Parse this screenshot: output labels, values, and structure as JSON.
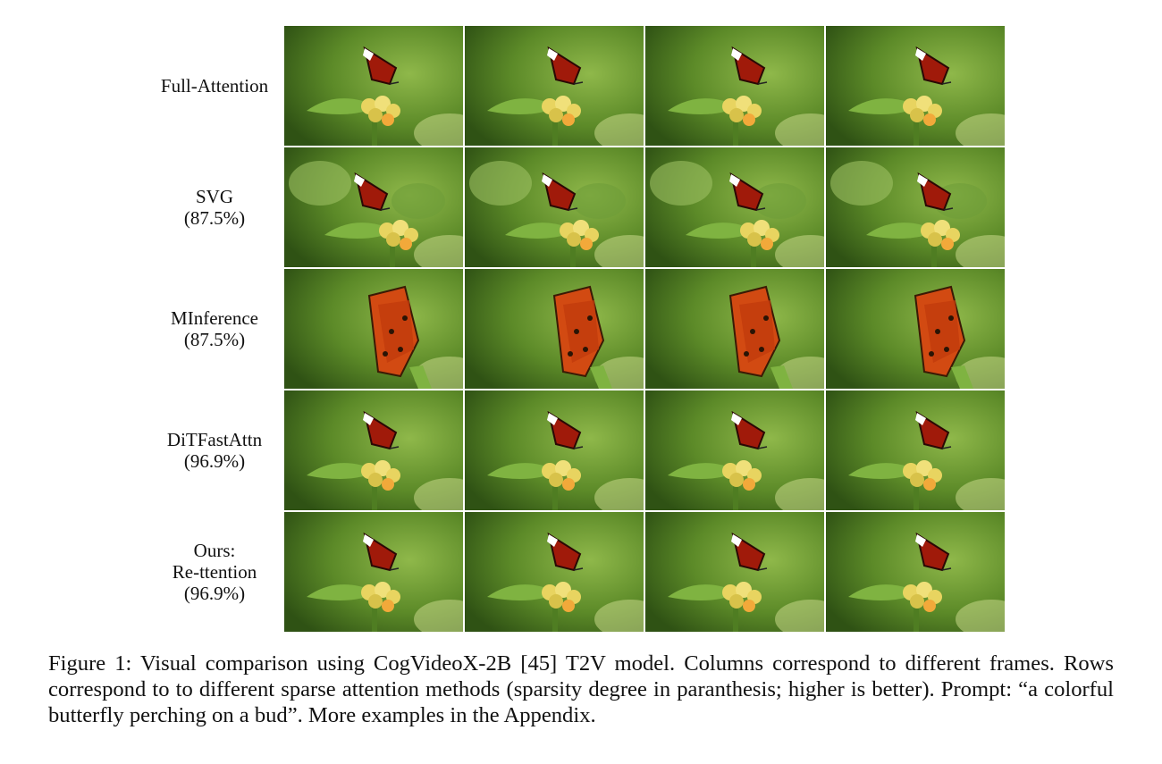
{
  "figure": {
    "columns": 4,
    "rows": [
      {
        "label_lines": [
          "Full-Attention"
        ],
        "variant": "clean"
      },
      {
        "label_lines": [
          "SVG",
          "(87.5%)"
        ],
        "variant": "blur"
      },
      {
        "label_lines": [
          "MInference",
          "(87.5%)"
        ],
        "variant": "distort"
      },
      {
        "label_lines": [
          "DiTFastAttn",
          "(96.9%)"
        ],
        "variant": "clean"
      },
      {
        "label_lines": [
          "Ours:",
          "Re-ttention",
          "(96.9%)"
        ],
        "variant": "clean"
      }
    ],
    "frame_description": "butterfly perching on a yellow flower bud"
  },
  "caption": {
    "text": "Figure 1: Visual comparison using CogVideoX-2B [45] T2V model. Columns correspond to different frames. Rows correspond to to different sparse attention methods (sparsity degree in paranthesis; higher is better). Prompt: “a colorful butterfly perching on a bud”. More examples in the Appendix."
  },
  "colors": {
    "background_green": "#5c8a28",
    "dark_green": "#2f5214",
    "leaf_green": "#7fb341",
    "flower_yellow": "#e8d460",
    "butterfly_red": "#a01a0a",
    "butterfly_orange": "#d24a12"
  }
}
